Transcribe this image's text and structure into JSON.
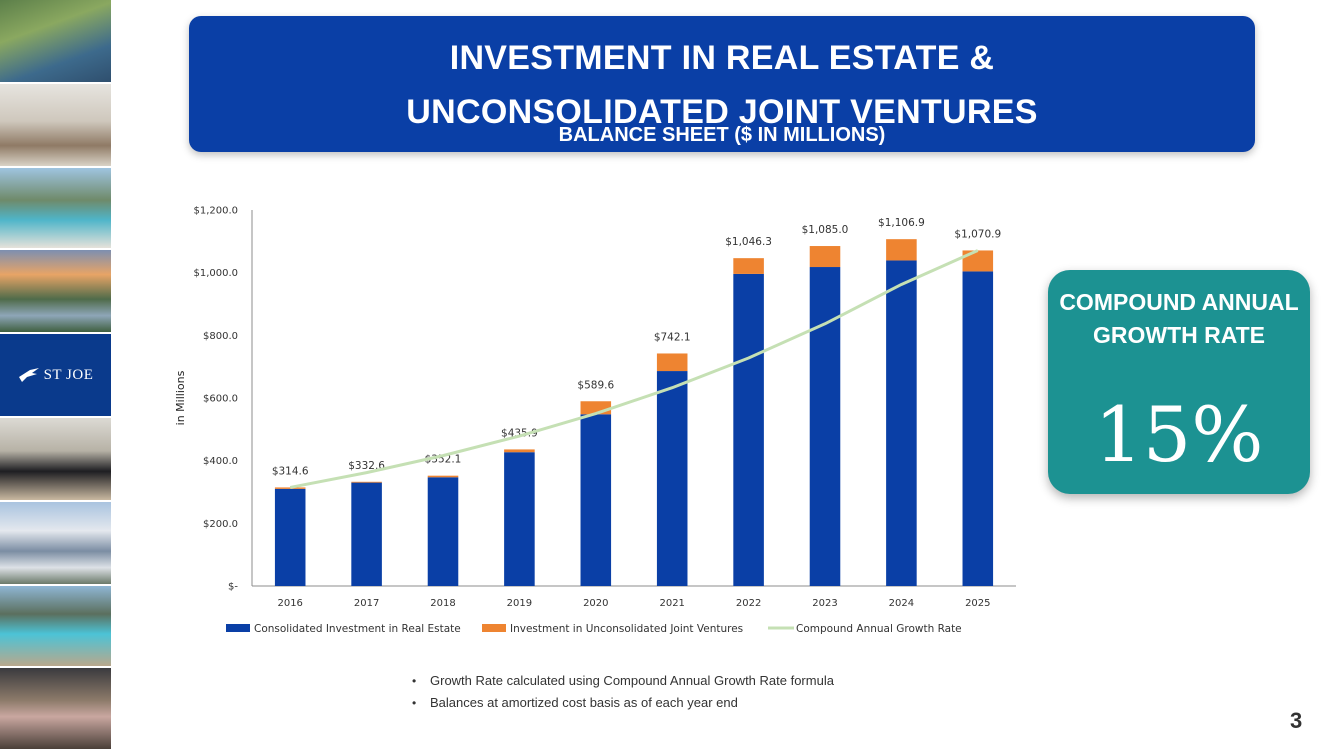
{
  "title": {
    "line1": "INVESTMENT IN REAL ESTATE &",
    "line2": "UNCONSOLIDATED JOINT VENTURES",
    "subtitle": "BALANCE SHEET ($ IN MILLIONS)"
  },
  "logo": {
    "text": "ST JOE"
  },
  "chart_data": {
    "type": "bar",
    "stacked": true,
    "categories": [
      "2016",
      "2017",
      "2018",
      "2019",
      "2020",
      "2021",
      "2022",
      "2023",
      "2024",
      "2025"
    ],
    "series": [
      {
        "name": "Consolidated Investment in Real Estate",
        "color": "#0a3fa6",
        "values": [
          310,
          330,
          347,
          427,
          548,
          686,
          996,
          1018,
          1039,
          1004
        ]
      },
      {
        "name": "Investment in Unconsolidated Joint Ventures",
        "color": "#ee8431",
        "values": [
          4.6,
          2.6,
          5.1,
          8.9,
          41.6,
          56.1,
          50.3,
          67.0,
          67.9,
          66.9
        ]
      },
      {
        "name": "Compound Annual Growth Rate",
        "color": "#c5e0b4",
        "type": "line",
        "values": [
          314.6,
          361.8,
          416.1,
          478.5,
          550.3,
          632.8,
          727.7,
          836.9,
          962.4,
          1070.9
        ]
      }
    ],
    "total_labels": [
      "$314.6",
      "$332.6",
      "$352.1",
      "$435.9",
      "$589.6",
      "$742.1",
      "$1,046.3",
      "$1,085.0",
      "$1,106.9",
      "$1,070.9"
    ],
    "ylabel": "in Millions",
    "ylim": [
      0,
      1200
    ],
    "yticks": [
      0,
      200,
      400,
      600,
      800,
      1000,
      1200
    ],
    "ytick_labels": [
      "$-",
      "$200.0",
      "$400.0",
      "$600.0",
      "$800.0",
      "$1,000.0",
      "$1,200.0"
    ],
    "grid": false,
    "legend_position": "bottom"
  },
  "cagr": {
    "label": "COMPOUND ANNUAL GROWTH RATE",
    "value": "15%"
  },
  "notes": [
    "Growth Rate calculated using Compound Annual Growth Rate formula",
    "Balances at amortized cost basis as of each year end"
  ],
  "page_number": "3"
}
